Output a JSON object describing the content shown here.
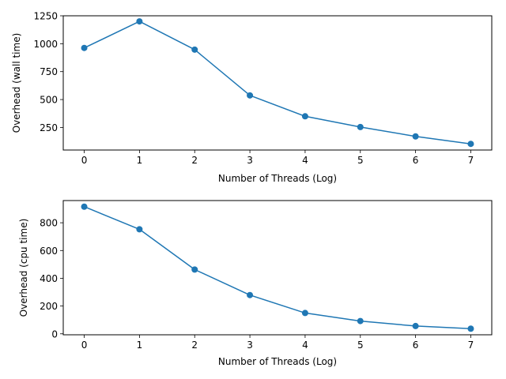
{
  "chart_data": [
    {
      "type": "line",
      "title": "",
      "xlabel": "Number of Threads (Log)",
      "ylabel": "Overhead (wall time)",
      "x": [
        0,
        1,
        2,
        3,
        4,
        5,
        6,
        7
      ],
      "series": [
        {
          "values": [
            962,
            1200,
            947,
            537,
            350,
            254,
            170,
            103
          ]
        }
      ],
      "xticks": [
        0,
        1,
        2,
        3,
        4,
        5,
        6,
        7
      ],
      "xtick_labels": [
        "0",
        "1",
        "2",
        "3",
        "4",
        "5",
        "6",
        "7"
      ],
      "yticks": [
        250,
        500,
        750,
        1000,
        1250
      ],
      "ytick_labels": [
        "250",
        "500",
        "750",
        "1000",
        "1250"
      ],
      "xlim": [
        -0.38,
        7.38
      ],
      "ylim": [
        48,
        1250
      ],
      "grid": false,
      "color": "#1f77b4"
    },
    {
      "type": "line",
      "title": "",
      "xlabel": "Number of Threads (Log)",
      "ylabel": "Overhead (cpu time)",
      "x": [
        0,
        1,
        2,
        3,
        4,
        5,
        6,
        7
      ],
      "series": [
        {
          "values": [
            916,
            753,
            463,
            279,
            150,
            92,
            56,
            37
          ]
        }
      ],
      "xticks": [
        0,
        1,
        2,
        3,
        4,
        5,
        6,
        7
      ],
      "xtick_labels": [
        "0",
        "1",
        "2",
        "3",
        "4",
        "5",
        "6",
        "7"
      ],
      "yticks": [
        0,
        200,
        400,
        600,
        800
      ],
      "ytick_labels": [
        "0",
        "200",
        "400",
        "600",
        "800"
      ],
      "xlim": [
        -0.38,
        7.38
      ],
      "ylim": [
        -7,
        960
      ],
      "grid": false,
      "color": "#1f77b4"
    }
  ]
}
